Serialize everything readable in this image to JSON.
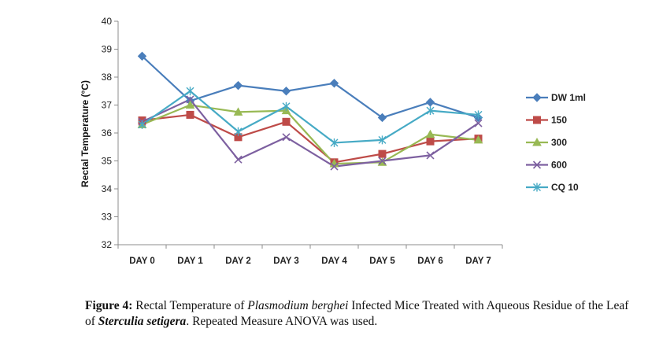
{
  "chart_data": {
    "type": "line",
    "categories": [
      "DAY 0",
      "DAY 1",
      "DAY 2",
      "DAY 3",
      "DAY 4",
      "DAY 5",
      "DAY 6",
      "DAY 7"
    ],
    "ylabel": "Rectal Temperature (°C)",
    "ylim": [
      32,
      40
    ],
    "yticks": [
      "32",
      "33",
      "34",
      "35",
      "36",
      "37",
      "38",
      "39",
      "40"
    ],
    "grid": false,
    "legend_position": "right",
    "series": [
      {
        "name": "DW 1ml",
        "color": "#4a7ebb",
        "marker": "diamond",
        "values": [
          38.75,
          37.15,
          37.7,
          37.5,
          37.78,
          36.55,
          37.1,
          36.55
        ]
      },
      {
        "name": "150",
        "color": "#be4b48",
        "marker": "square",
        "values": [
          36.45,
          36.65,
          35.85,
          36.4,
          34.95,
          35.25,
          35.7,
          35.8
        ]
      },
      {
        "name": "300",
        "color": "#98b954",
        "marker": "triangle",
        "values": [
          36.3,
          37.0,
          36.75,
          36.8,
          34.9,
          34.95,
          35.95,
          35.75
        ]
      },
      {
        "name": "600",
        "color": "#7d60a0",
        "marker": "x",
        "values": [
          36.4,
          37.2,
          35.05,
          35.85,
          34.8,
          35.0,
          35.2,
          36.35
        ]
      },
      {
        "name": "CQ 10",
        "color": "#46aac5",
        "marker": "star",
        "values": [
          36.3,
          37.5,
          36.05,
          36.95,
          35.65,
          35.75,
          36.8,
          36.65
        ]
      }
    ]
  },
  "caption": {
    "label": "Figure 4:",
    "text_1": " Rectal Temperature of ",
    "species_1": "Plasmodium berghei",
    "text_2": " Infected Mice Treated with Aqueous Residue of the Leaf of ",
    "species_2": "Sterculia setigera",
    "text_3": ". Repeated Measure ANOVA was used."
  }
}
